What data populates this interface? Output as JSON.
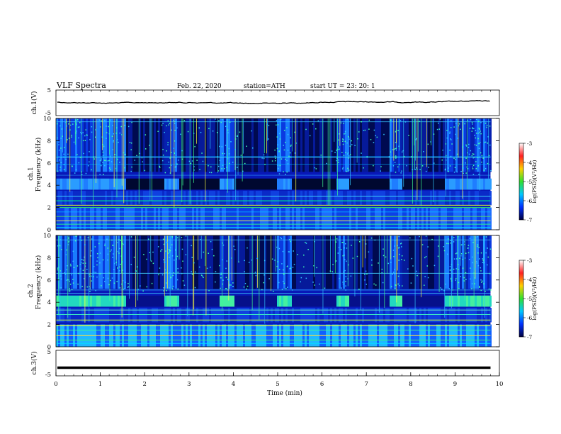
{
  "header": {
    "title": "VLF Spectra",
    "date": "Feb. 22, 2020",
    "station": "station=ATH",
    "start": "start UT = 23: 20: 1"
  },
  "panels": {
    "ch1_waveform": {
      "ylabel": "ch.1(V)",
      "yticks": [
        "5",
        "-5"
      ]
    },
    "ch1_spec": {
      "ylabel_top": "ch.1",
      "ylabel": "Frequency (kHz)",
      "yticks": [
        "10",
        "8",
        "6",
        "4",
        "2",
        "0"
      ]
    },
    "ch2_spec": {
      "ylabel_top": "ch.2",
      "ylabel": "Frequency (kHz)",
      "yticks": [
        "10",
        "8",
        "6",
        "4",
        "2",
        "0"
      ]
    },
    "ch3_waveform": {
      "ylabel": "ch.3(V)",
      "yticks": [
        "5",
        "-5"
      ]
    }
  },
  "xaxis": {
    "label": "Time (min)",
    "ticks": [
      "0",
      "1",
      "2",
      "3",
      "4",
      "5",
      "6",
      "7",
      "8",
      "9",
      "10"
    ]
  },
  "colorbar": {
    "label": "log(PSD)(V²/Hz)",
    "ticks": [
      "-3",
      "-4",
      "-5",
      "-6",
      "-7"
    ],
    "colors": [
      "#ffffff",
      "#ff2020",
      "#ffd000",
      "#30e030",
      "#00c8ff",
      "#0030ff",
      "#000040"
    ]
  },
  "chart_data": {
    "type": "heatmap",
    "title": "VLF Spectra",
    "xlabel": "Time (min)",
    "ylabel": "Frequency (kHz)",
    "xlim": [
      0,
      10
    ],
    "ylim": [
      0,
      10
    ],
    "waveform_ylim": [
      -5,
      5
    ],
    "data_end_min": 9.8,
    "colorbar_range": [
      -7,
      -3
    ],
    "band_4khz_quiet_intervals_min": [
      [
        1.55,
        2.4
      ],
      [
        2.75,
        3.65
      ],
      [
        4.0,
        4.95
      ],
      [
        5.3,
        6.3
      ],
      [
        6.6,
        7.5
      ],
      [
        7.8,
        8.75
      ]
    ],
    "ch3_level_V": -1.8
  }
}
